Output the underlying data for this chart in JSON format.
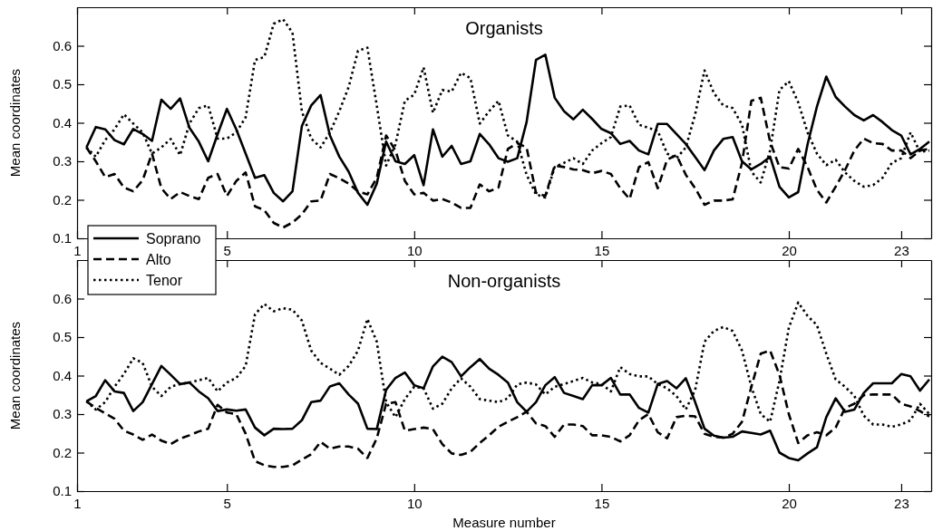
{
  "chart_data": [
    {
      "type": "line",
      "title": "Organists",
      "ylabel": "Mean coordinates",
      "x": [
        1.25,
        1.5,
        1.75,
        2,
        2.25,
        2.5,
        2.75,
        3,
        3.25,
        3.5,
        3.75,
        4,
        4.25,
        4.5,
        4.75,
        5,
        5.25,
        5.5,
        5.75,
        6,
        6.25,
        6.5,
        6.75,
        7,
        7.25,
        7.5,
        7.75,
        8,
        8.25,
        8.5,
        8.75,
        9,
        9.25,
        9.5,
        9.75,
        10,
        10.25,
        10.5,
        10.75,
        11,
        11.25,
        11.5,
        11.75,
        12,
        12.25,
        12.5,
        12.75,
        13,
        13.25,
        13.5,
        13.75,
        14,
        14.25,
        14.5,
        14.75,
        15,
        15.25,
        15.5,
        15.75,
        16,
        16.25,
        16.5,
        16.75,
        17,
        17.25,
        17.5,
        17.75,
        18,
        18.25,
        18.5,
        18.75,
        19,
        19.25,
        19.5,
        19.75,
        20,
        20.25,
        20.5,
        20.75,
        21,
        21.25,
        21.5,
        21.75,
        22,
        22.25,
        22.5,
        22.75,
        23,
        23.25,
        23.5,
        23.75
      ],
      "xlim": [
        1,
        23.8
      ],
      "xticks": [
        1,
        5,
        10,
        15,
        20,
        23
      ],
      "ylim": [
        0.1,
        0.7
      ],
      "yticks": [
        0.1,
        0.2,
        0.3,
        0.4,
        0.5,
        0.6
      ],
      "legend": "bottom left",
      "series": [
        {
          "name": "Soprano",
          "color": "#000000",
          "line_style": "solid",
          "values": [
            0.336,
            0.389,
            0.383,
            0.355,
            0.344,
            0.384,
            0.371,
            0.353,
            0.46,
            0.436,
            0.463,
            0.387,
            0.351,
            0.3,
            0.37,
            0.436,
            0.383,
            0.32,
            0.257,
            0.264,
            0.218,
            0.196,
            0.222,
            0.391,
            0.445,
            0.472,
            0.367,
            0.312,
            0.273,
            0.218,
            0.187,
            0.242,
            0.351,
            0.3,
            0.293,
            0.316,
            0.238,
            0.383,
            0.312,
            0.34,
            0.293,
            0.3,
            0.371,
            0.344,
            0.308,
            0.299,
            0.308,
            0.402,
            0.563,
            0.577,
            0.465,
            0.43,
            0.409,
            0.434,
            0.41,
            0.384,
            0.373,
            0.345,
            0.353,
            0.328,
            0.318,
            0.397,
            0.397,
            0.371,
            0.345,
            0.311,
            0.277,
            0.328,
            0.358,
            0.363,
            0.3,
            0.279,
            0.293,
            0.312,
            0.234,
            0.206,
            0.22,
            0.344,
            0.442,
            0.52,
            0.467,
            0.442,
            0.42,
            0.406,
            0.42,
            0.402,
            0.381,
            0.367,
            0.318,
            0.332,
            0.351
          ]
        },
        {
          "name": "Alto",
          "color": "#000000",
          "line_style": "dashed",
          "values": [
            0.336,
            0.3,
            0.259,
            0.267,
            0.232,
            0.222,
            0.251,
            0.32,
            0.23,
            0.202,
            0.22,
            0.21,
            0.202,
            0.257,
            0.267,
            0.21,
            0.249,
            0.271,
            0.183,
            0.173,
            0.14,
            0.128,
            0.141,
            0.162,
            0.196,
            0.198,
            0.267,
            0.256,
            0.242,
            0.222,
            0.214,
            0.257,
            0.367,
            0.328,
            0.249,
            0.214,
            0.218,
            0.198,
            0.202,
            0.193,
            0.179,
            0.179,
            0.24,
            0.222,
            0.232,
            0.332,
            0.347,
            0.336,
            0.218,
            0.21,
            0.289,
            0.285,
            0.279,
            0.277,
            0.269,
            0.275,
            0.267,
            0.23,
            0.202,
            0.285,
            0.298,
            0.23,
            0.304,
            0.316,
            0.265,
            0.23,
            0.187,
            0.198,
            0.198,
            0.201,
            0.296,
            0.457,
            0.465,
            0.351,
            0.285,
            0.281,
            0.332,
            0.285,
            0.226,
            0.193,
            0.234,
            0.277,
            0.328,
            0.359,
            0.347,
            0.345,
            0.328,
            0.328,
            0.308,
            0.328,
            0.332
          ]
        },
        {
          "name": "Tenor",
          "color": "#000000",
          "line_style": "dotted",
          "values": [
            0.336,
            0.312,
            0.355,
            0.383,
            0.422,
            0.398,
            0.375,
            0.32,
            0.336,
            0.358,
            0.316,
            0.398,
            0.438,
            0.445,
            0.359,
            0.359,
            0.375,
            0.414,
            0.563,
            0.571,
            0.657,
            0.669,
            0.634,
            0.43,
            0.359,
            0.336,
            0.375,
            0.43,
            0.493,
            0.587,
            0.595,
            0.445,
            0.289,
            0.344,
            0.457,
            0.473,
            0.544,
            0.426,
            0.485,
            0.481,
            0.53,
            0.516,
            0.398,
            0.43,
            0.457,
            0.367,
            0.351,
            0.265,
            0.214,
            0.206,
            0.285,
            0.296,
            0.308,
            0.293,
            0.328,
            0.347,
            0.363,
            0.442,
            0.445,
            0.395,
            0.387,
            0.379,
            0.32,
            0.308,
            0.336,
            0.422,
            0.536,
            0.477,
            0.445,
            0.438,
            0.395,
            0.273,
            0.245,
            0.328,
            0.485,
            0.508,
            0.453,
            0.375,
            0.32,
            0.29,
            0.304,
            0.271,
            0.249,
            0.234,
            0.238,
            0.257,
            0.296,
            0.308,
            0.375,
            0.324,
            0.328
          ]
        }
      ]
    },
    {
      "type": "line",
      "title": "Non-organists",
      "xlabel": "Measure number",
      "ylabel": "Mean coordinates",
      "x": [
        1.25,
        1.5,
        1.75,
        2,
        2.25,
        2.5,
        2.75,
        3,
        3.25,
        3.5,
        3.75,
        4,
        4.25,
        4.5,
        4.75,
        5,
        5.25,
        5.5,
        5.75,
        6,
        6.25,
        6.5,
        6.75,
        7,
        7.25,
        7.5,
        7.75,
        8,
        8.25,
        8.5,
        8.75,
        9,
        9.25,
        9.5,
        9.75,
        10,
        10.25,
        10.5,
        10.75,
        11,
        11.25,
        11.5,
        11.75,
        12,
        12.25,
        12.5,
        12.75,
        13,
        13.25,
        13.5,
        13.75,
        14,
        14.25,
        14.5,
        14.75,
        15,
        15.25,
        15.5,
        15.75,
        16,
        16.25,
        16.5,
        16.75,
        17,
        17.25,
        17.5,
        17.75,
        18,
        18.25,
        18.5,
        18.75,
        19,
        19.25,
        19.5,
        19.75,
        20,
        20.25,
        20.5,
        20.75,
        21,
        21.25,
        21.5,
        21.75,
        22,
        22.25,
        22.5,
        22.75,
        23,
        23.25,
        23.5,
        23.75
      ],
      "xlim": [
        1,
        23.8
      ],
      "xticks": [
        1,
        5,
        10,
        15,
        20,
        23
      ],
      "ylim": [
        0.1,
        0.7
      ],
      "yticks": [
        0.1,
        0.2,
        0.3,
        0.4,
        0.5,
        0.6
      ],
      "series": [
        {
          "color": "#000000",
          "line_style": "solid",
          "values": [
            0.333,
            0.347,
            0.388,
            0.359,
            0.355,
            0.308,
            0.331,
            0.378,
            0.425,
            0.402,
            0.378,
            0.382,
            0.359,
            0.341,
            0.308,
            0.312,
            0.309,
            0.312,
            0.265,
            0.245,
            0.262,
            0.261,
            0.262,
            0.284,
            0.331,
            0.335,
            0.372,
            0.38,
            0.351,
            0.327,
            0.262,
            0.261,
            0.363,
            0.394,
            0.408,
            0.375,
            0.367,
            0.424,
            0.449,
            0.435,
            0.398,
            0.422,
            0.443,
            0.418,
            0.402,
            0.382,
            0.331,
            0.306,
            0.331,
            0.375,
            0.396,
            0.355,
            0.347,
            0.339,
            0.375,
            0.375,
            0.394,
            0.351,
            0.351,
            0.316,
            0.304,
            0.378,
            0.386,
            0.367,
            0.393,
            0.331,
            0.262,
            0.244,
            0.239,
            0.241,
            0.255,
            0.251,
            0.247,
            0.257,
            0.2,
            0.186,
            0.18,
            0.198,
            0.214,
            0.292,
            0.341,
            0.306,
            0.312,
            0.355,
            0.38,
            0.38,
            0.38,
            0.404,
            0.398,
            0.361,
            0.39
          ]
        },
        {
          "color": "#000000",
          "line_style": "dashed",
          "values": [
            0.333,
            0.316,
            0.302,
            0.288,
            0.257,
            0.247,
            0.233,
            0.247,
            0.231,
            0.222,
            0.236,
            0.245,
            0.255,
            0.262,
            0.324,
            0.304,
            0.3,
            0.249,
            0.178,
            0.167,
            0.163,
            0.163,
            0.167,
            0.182,
            0.196,
            0.228,
            0.21,
            0.216,
            0.216,
            0.21,
            0.186,
            0.237,
            0.327,
            0.331,
            0.257,
            0.261,
            0.265,
            0.261,
            0.222,
            0.198,
            0.194,
            0.202,
            0.225,
            0.245,
            0.267,
            0.28,
            0.292,
            0.306,
            0.276,
            0.269,
            0.241,
            0.273,
            0.273,
            0.269,
            0.245,
            0.245,
            0.241,
            0.229,
            0.245,
            0.284,
            0.3,
            0.253,
            0.237,
            0.292,
            0.296,
            0.294,
            0.249,
            0.241,
            0.239,
            0.249,
            0.28,
            0.371,
            0.457,
            0.465,
            0.402,
            0.3,
            0.225,
            0.245,
            0.253,
            0.245,
            0.265,
            0.316,
            0.327,
            0.349,
            0.351,
            0.351,
            0.351,
            0.327,
            0.32,
            0.308,
            0.294
          ]
        },
        {
          "color": "#000000",
          "line_style": "dotted",
          "values": [
            0.333,
            0.312,
            0.331,
            0.371,
            0.404,
            0.445,
            0.433,
            0.371,
            0.347,
            0.371,
            0.378,
            0.382,
            0.388,
            0.394,
            0.359,
            0.382,
            0.394,
            0.425,
            0.559,
            0.586,
            0.567,
            0.575,
            0.571,
            0.543,
            0.465,
            0.433,
            0.418,
            0.402,
            0.425,
            0.465,
            0.547,
            0.488,
            0.331,
            0.292,
            0.339,
            0.371,
            0.367,
            0.314,
            0.327,
            0.367,
            0.393,
            0.371,
            0.339,
            0.335,
            0.331,
            0.341,
            0.377,
            0.382,
            0.377,
            0.351,
            0.371,
            0.378,
            0.386,
            0.394,
            0.382,
            0.378,
            0.359,
            0.422,
            0.404,
            0.398,
            0.398,
            0.378,
            0.367,
            0.347,
            0.312,
            0.363,
            0.488,
            0.516,
            0.526,
            0.516,
            0.465,
            0.371,
            0.3,
            0.28,
            0.386,
            0.524,
            0.59,
            0.555,
            0.531,
            0.457,
            0.39,
            0.371,
            0.347,
            0.296,
            0.273,
            0.273,
            0.267,
            0.273,
            0.284,
            0.327,
            0.3
          ]
        }
      ]
    }
  ]
}
